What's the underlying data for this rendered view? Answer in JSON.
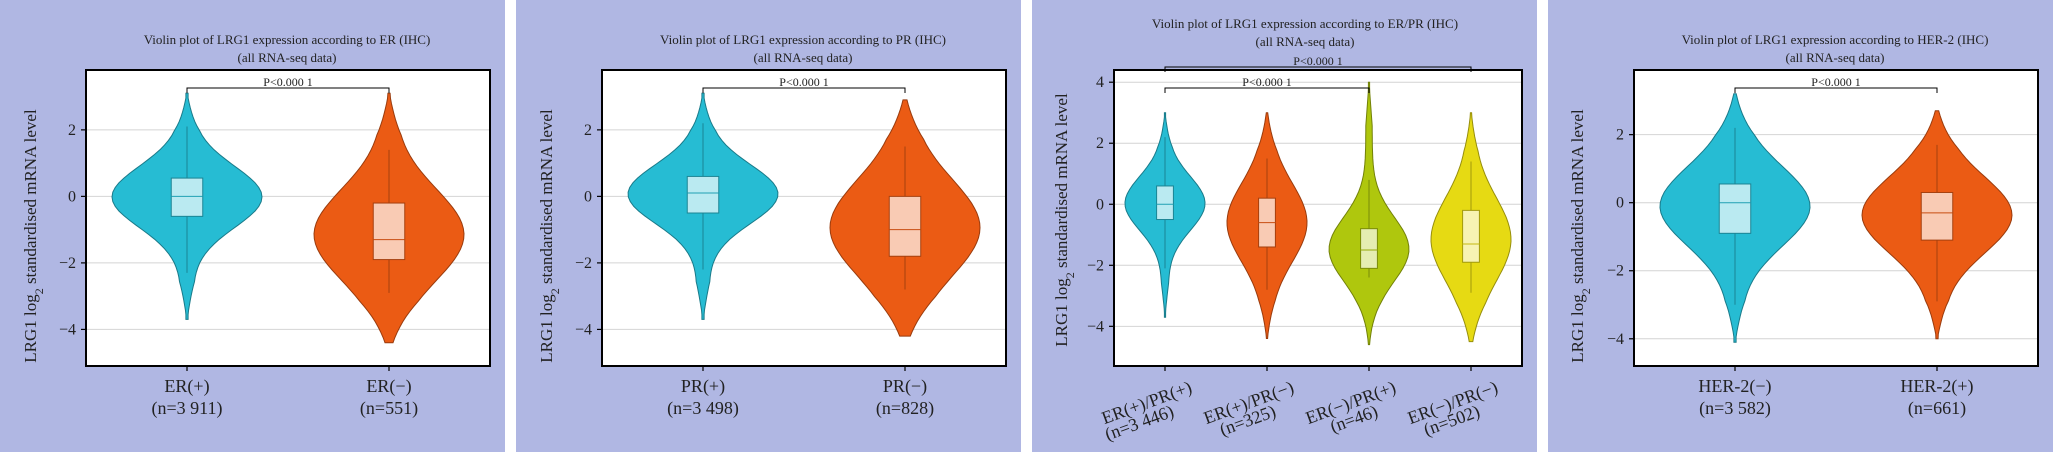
{
  "chart_data": [
    {
      "type": "violin",
      "title_line1": "Violin plot of LRG1 expression according to ER (IHC)",
      "title_line2": "(all RNA-seq data)",
      "ylabel_pre": "LRG1 log",
      "ylabel_sub": "2",
      "ylabel_post": " standardised mRNA level",
      "ylim": [
        -5.1,
        3.8
      ],
      "yticks": [
        -4,
        -2,
        0,
        2
      ],
      "ytick_labels": [
        "−4",
        "−2",
        "0",
        "2"
      ],
      "grid": true,
      "groups": [
        {
          "label": "ER(+)",
          "n_label": "(n=3 911)",
          "color": "#26bcd3",
          "min": -3.7,
          "max": 3.1,
          "q1": -0.6,
          "median": 0.0,
          "q3": 0.55,
          "whisker_low": -2.3,
          "whisker_high": 2.1
        },
        {
          "label": "ER(−)",
          "n_label": "(n=551)",
          "color": "#eb5b14",
          "min": -4.4,
          "max": 3.1,
          "q1": -1.9,
          "median": -1.3,
          "q3": -0.2,
          "whisker_low": -2.9,
          "whisker_high": 1.4
        }
      ],
      "comparisons": [
        {
          "from": 0,
          "to": 1,
          "label": "P<0.000 1"
        }
      ]
    },
    {
      "type": "violin",
      "title_line1": "Violin plot of LRG1 expression according to PR (IHC)",
      "title_line2": "(all RNA-seq data)",
      "ylabel_pre": "LRG1 log",
      "ylabel_sub": "2",
      "ylabel_post": " standardised mRNA level",
      "ylim": [
        -5.1,
        3.8
      ],
      "yticks": [
        -4,
        -2,
        0,
        2
      ],
      "ytick_labels": [
        "−4",
        "−2",
        "0",
        "2"
      ],
      "grid": true,
      "groups": [
        {
          "label": "PR(+)",
          "n_label": "(n=3 498)",
          "color": "#26bcd3",
          "min": -3.7,
          "max": 3.1,
          "q1": -0.5,
          "median": 0.1,
          "q3": 0.6,
          "whisker_low": -2.2,
          "whisker_high": 2.2
        },
        {
          "label": "PR(−)",
          "n_label": "(n=828)",
          "color": "#eb5b14",
          "min": -4.2,
          "max": 2.9,
          "q1": -1.8,
          "median": -1.0,
          "q3": 0.0,
          "whisker_low": -2.8,
          "whisker_high": 1.5
        }
      ],
      "comparisons": [
        {
          "from": 0,
          "to": 1,
          "label": "P<0.000 1"
        }
      ]
    },
    {
      "type": "violin",
      "title_line1": "Violin plot of LRG1 expression according to ER/PR (IHC)",
      "title_line2": "(all RNA-seq data)",
      "ylabel_pre": "LRG1 log",
      "ylabel_sub": "2",
      "ylabel_post": " standardised mRNA level",
      "ylim": [
        -5.3,
        4.4
      ],
      "yticks": [
        -4,
        -2,
        0,
        2,
        4
      ],
      "ytick_labels": [
        "−4",
        "−2",
        "0",
        "2",
        "4"
      ],
      "grid": true,
      "groups": [
        {
          "label": "ER(+)/PR(+)",
          "n_label": "(n=3 446)",
          "color": "#26bcd3",
          "min": -3.7,
          "max": 3.0,
          "q1": -0.5,
          "median": 0.0,
          "q3": 0.6,
          "whisker_low": -2.1,
          "whisker_high": 2.2
        },
        {
          "label": "ER(+)/PR(−)",
          "n_label": "(n=325)",
          "color": "#eb5b14",
          "min": -4.4,
          "max": 3.0,
          "q1": -1.4,
          "median": -0.6,
          "q3": 0.2,
          "whisker_low": -2.8,
          "whisker_high": 1.5
        },
        {
          "label": "ER(−)/PR(+)",
          "n_label": "(n=46)",
          "color": "#afc70d",
          "min": -4.6,
          "max": 4.0,
          "q1": -2.1,
          "median": -1.5,
          "q3": -0.8,
          "whisker_low": -2.4,
          "whisker_high": 0.8
        },
        {
          "label": "ER(−)/PR(−)",
          "n_label": "(n=502)",
          "color": "#e6da13",
          "min": -4.5,
          "max": 3.0,
          "q1": -1.9,
          "median": -1.3,
          "q3": -0.2,
          "whisker_low": -2.9,
          "whisker_high": 1.4
        }
      ],
      "comparisons": [
        {
          "from": 0,
          "to": 2,
          "label": "P<0.000 1",
          "level": 0
        },
        {
          "from": 0,
          "to": 3,
          "label": "P<0.000 1",
          "level": 1
        }
      ]
    },
    {
      "type": "violin",
      "title_line1": "Violin plot of LRG1 expression according to HER-2 (IHC)",
      "title_line2": "(all RNA-seq data)",
      "ylabel_pre": "LRG1 log",
      "ylabel_sub": "2",
      "ylabel_post": " standardised mRNA level",
      "ylim": [
        -4.8,
        3.9
      ],
      "yticks": [
        -4,
        -2,
        0,
        2
      ],
      "ytick_labels": [
        "−4",
        "−2",
        "0",
        "2"
      ],
      "grid": true,
      "groups": [
        {
          "label": "HER-2(−)",
          "n_label": "(n=3 582)",
          "color": "#26bcd3",
          "min": -4.1,
          "max": 3.2,
          "q1": -0.9,
          "median": 0.0,
          "q3": 0.55,
          "whisker_low": -3.0,
          "whisker_high": 2.2
        },
        {
          "label": "HER-2(+)",
          "n_label": "(n=661)",
          "color": "#eb5b14",
          "min": -4.0,
          "max": 2.7,
          "q1": -1.1,
          "median": -0.3,
          "q3": 0.3,
          "whisker_low": -2.9,
          "whisker_high": 1.7
        }
      ],
      "comparisons": [
        {
          "from": 0,
          "to": 1,
          "label": "P<0.000 1"
        }
      ]
    }
  ]
}
